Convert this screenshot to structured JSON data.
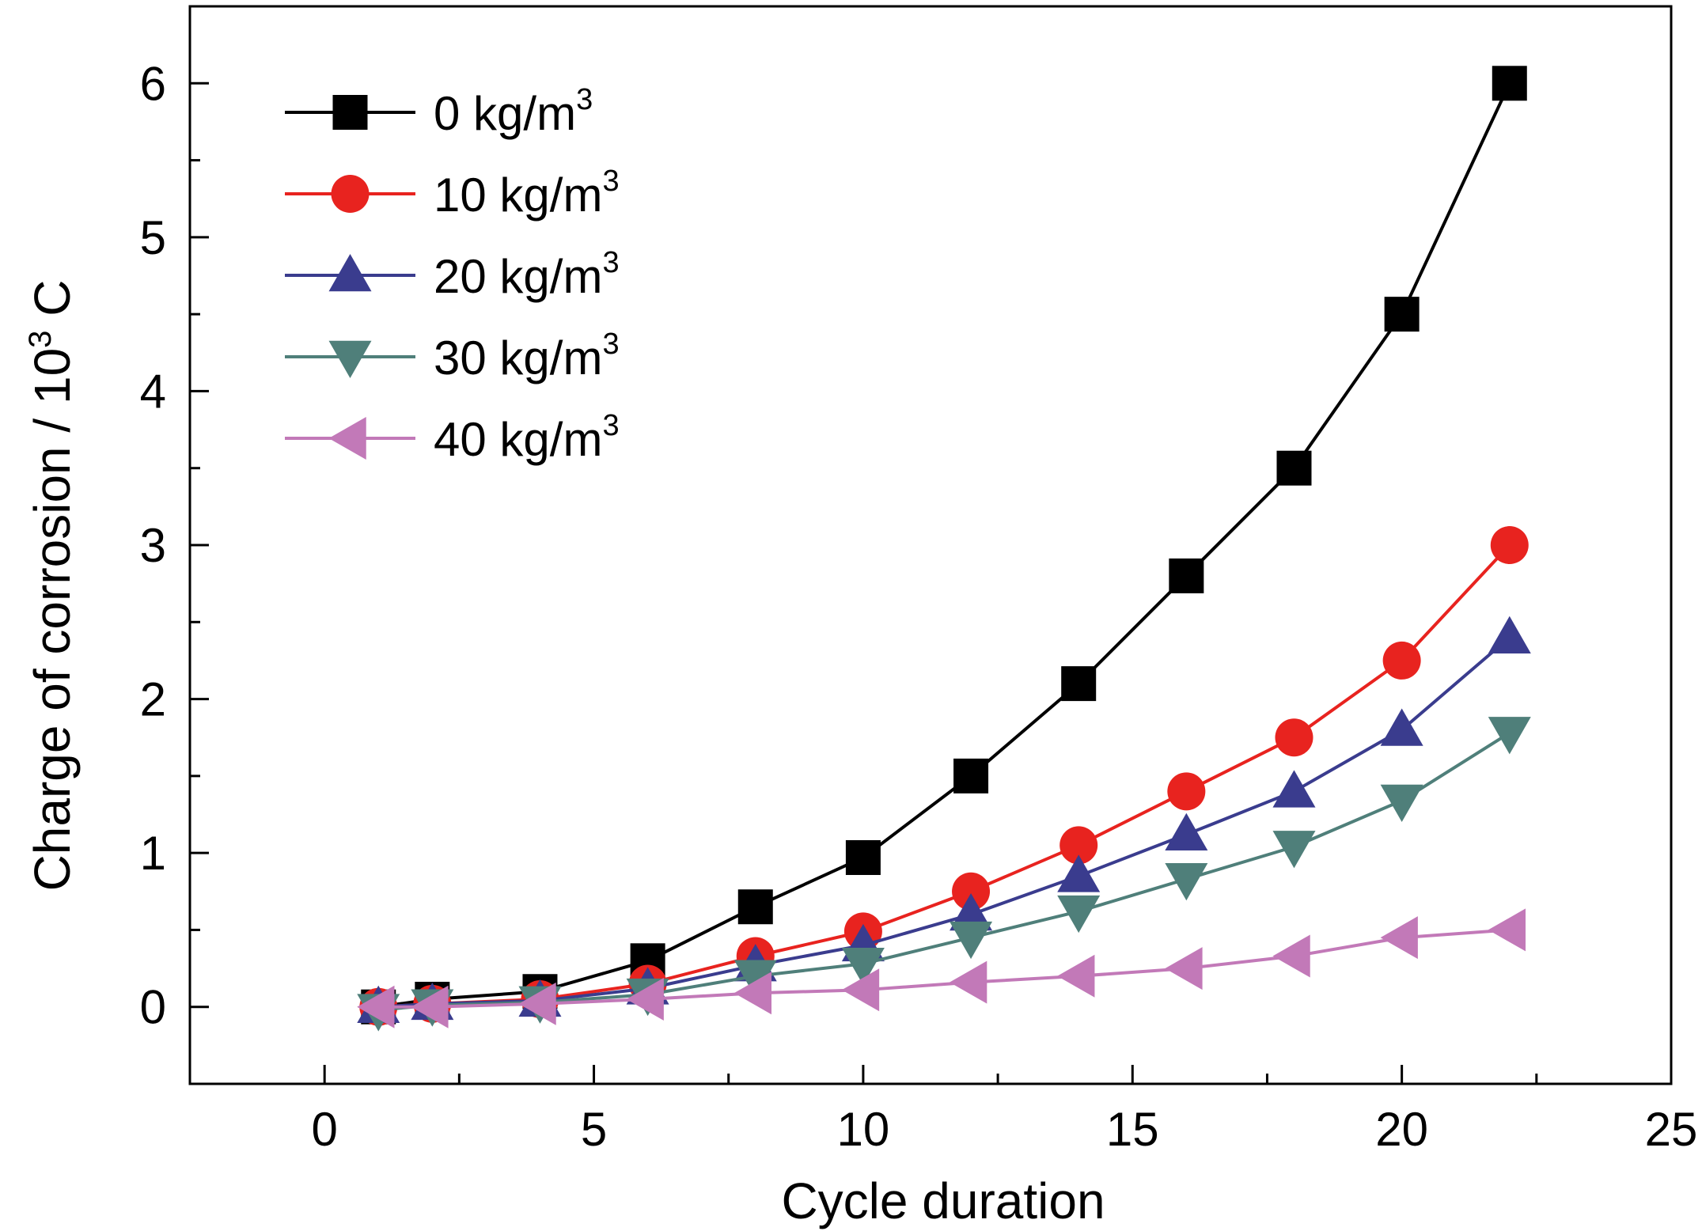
{
  "chart_data": {
    "type": "line",
    "title": "",
    "xlabel": "Cycle duration",
    "ylabel_main": "Charge of corrosion / 10",
    "ylabel_sup": "3",
    "ylabel_unit": " C",
    "xlim": [
      -2.5,
      25
    ],
    "ylim": [
      -0.5,
      6.5
    ],
    "xticks": [
      0,
      5,
      10,
      15,
      20,
      25
    ],
    "yticks": [
      0,
      1,
      2,
      3,
      4,
      5,
      6
    ],
    "grid": false,
    "legend_position": "top-left",
    "x": [
      1,
      2,
      4,
      6,
      8,
      10,
      12,
      14,
      16,
      18,
      20,
      22
    ],
    "series": [
      {
        "name": "0 kg/m",
        "name_sup": "3",
        "color": "#000000",
        "marker": "square",
        "values": [
          0.0,
          0.05,
          0.1,
          0.3,
          0.65,
          0.97,
          1.5,
          2.1,
          2.8,
          3.5,
          4.5,
          6.0
        ]
      },
      {
        "name": "10 kg/m",
        "name_sup": "3",
        "color": "#e8231f",
        "marker": "circle",
        "values": [
          0.0,
          0.02,
          0.05,
          0.15,
          0.33,
          0.49,
          0.75,
          1.05,
          1.4,
          1.75,
          2.25,
          3.0
        ]
      },
      {
        "name": "20 kg/m",
        "name_sup": "3",
        "color": "#3a3c8e",
        "marker": "triangle-up",
        "values": [
          0.0,
          0.02,
          0.04,
          0.12,
          0.27,
          0.4,
          0.6,
          0.85,
          1.12,
          1.4,
          1.8,
          2.4
        ]
      },
      {
        "name": "30 kg/m",
        "name_sup": "3",
        "color": "#4f7f7a",
        "marker": "triangle-down",
        "values": [
          -0.02,
          0.01,
          0.03,
          0.08,
          0.2,
          0.28,
          0.45,
          0.62,
          0.83,
          1.04,
          1.34,
          1.78
        ]
      },
      {
        "name": "40 kg/m",
        "name_sup": "3",
        "color": "#c279b8",
        "marker": "triangle-left",
        "values": [
          0.0,
          0.0,
          0.02,
          0.05,
          0.09,
          0.11,
          0.16,
          0.2,
          0.25,
          0.33,
          0.45,
          0.5
        ]
      }
    ]
  }
}
